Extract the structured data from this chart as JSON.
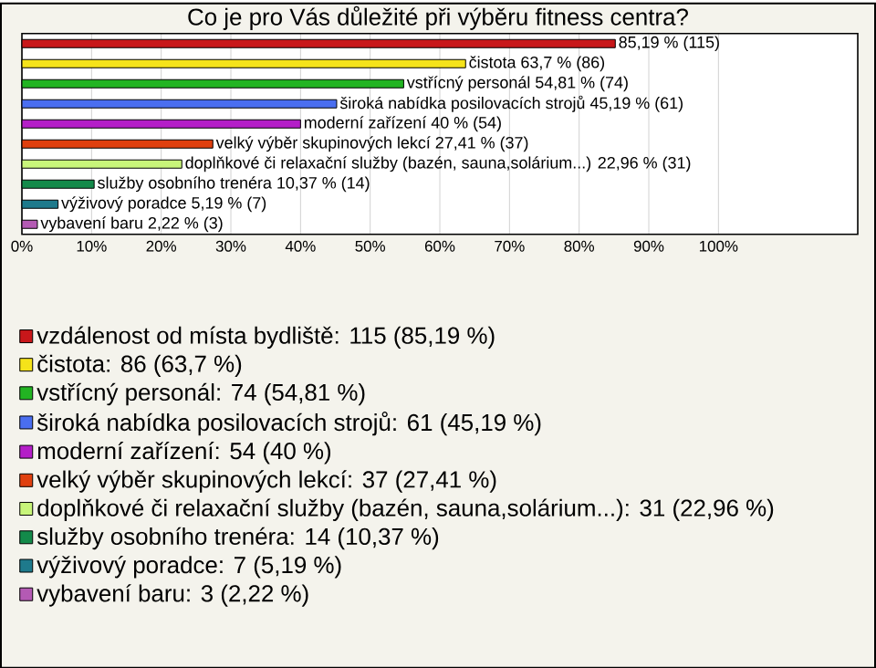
{
  "chart_data": {
    "type": "bar",
    "orientation": "horizontal",
    "title": "Co je pro Vás důležité při výběru fitness centra?",
    "categories": [
      null,
      null,
      null,
      null,
      null,
      null,
      null,
      null,
      null,
      null
    ],
    "series": [
      {
        "name": "vzdálenost od místa bydliště: 115 (85,19 %)",
        "color": "#c8171a",
        "values": [
          85.19,
          null,
          null,
          null,
          null,
          null,
          null,
          null,
          null,
          null
        ],
        "value_labels": [
          "85,19 % (115)",
          null,
          null,
          null,
          null,
          null,
          null,
          null,
          null,
          null
        ]
      },
      {
        "name": "čistota: 86 (63,7 %)",
        "color": "#f5e31a",
        "values": [
          null,
          63.7,
          null,
          null,
          null,
          null,
          null,
          null,
          null,
          null
        ],
        "value_labels": [
          null,
          "čistota 63,7 % (86)",
          null,
          null,
          null,
          null,
          null,
          null,
          null,
          null
        ]
      },
      {
        "name": "vstřícný personál: 74 (54,81 %)",
        "color": "#22b422",
        "values": [
          null,
          null,
          54.81,
          null,
          null,
          null,
          null,
          null,
          null,
          null
        ],
        "value_labels": [
          null,
          null,
          "vstřícný personál 54,81 % (74)",
          null,
          null,
          null,
          null,
          null,
          null,
          null
        ]
      },
      {
        "name": "široká nabídka posilovacích strojů: 61 (45,19 %)",
        "color": "#4a6ef0",
        "values": [
          null,
          null,
          null,
          45.19,
          null,
          null,
          null,
          null,
          null,
          null
        ],
        "value_labels": [
          null,
          null,
          null,
          "široká nabídka posilovacích strojů 45,19 % (61)",
          null,
          null,
          null,
          null,
          null,
          null
        ]
      },
      {
        "name": "moderní zařízení: 54 (40 %)",
        "color": "#b41ec8",
        "values": [
          null,
          null,
          null,
          null,
          40,
          null,
          null,
          null,
          null,
          null
        ],
        "value_labels": [
          null,
          null,
          null,
          null,
          "moderní zařízení 40 % (54)",
          null,
          null,
          null,
          null,
          null
        ]
      },
      {
        "name": "velký výběr skupinových lekcí: 37 (27,41 %)",
        "color": "#e0400f",
        "values": [
          null,
          null,
          null,
          null,
          null,
          27.41,
          null,
          null,
          null,
          null
        ],
        "value_labels": [
          null,
          null,
          null,
          null,
          null,
          "velký výběr skupinových lekcí 27,41 % (37)",
          null,
          null,
          null,
          null
        ]
      },
      {
        "name": "doplňkové či relaxační služby (bazén, sauna,solárium...): 31 (22,96 %)",
        "color": "#c8f57a",
        "values": [
          null,
          null,
          null,
          null,
          null,
          null,
          22.96,
          null,
          null,
          null
        ],
        "value_labels": [
          null,
          null,
          null,
          null,
          null,
          null,
          "doplňkové či relaxační služby (bazén, sauna,solárium...) 22,96 % (31)",
          null,
          null,
          null
        ]
      },
      {
        "name": "služby osobního trenéra: 14 (10,37 %)",
        "color": "#138a4a",
        "values": [
          null,
          null,
          null,
          null,
          null,
          null,
          null,
          10.37,
          null,
          null
        ],
        "value_labels": [
          null,
          null,
          null,
          null,
          null,
          null,
          null,
          "služby osobního trenéra 10,37 % (14)",
          null,
          null
        ]
      },
      {
        "name": "výživový poradce: 7 (5,19 %)",
        "color": "#1e7a8c",
        "values": [
          null,
          null,
          null,
          null,
          null,
          null,
          null,
          null,
          5.19,
          null
        ],
        "value_labels": [
          null,
          null,
          null,
          null,
          null,
          null,
          null,
          null,
          "výživový poradce 5,19 % (7)",
          null
        ]
      },
      {
        "name": "vybavení baru: 3 (2,22 %)",
        "color": "#b45ab4",
        "values": [
          null,
          null,
          null,
          null,
          null,
          null,
          null,
          null,
          null,
          2.22
        ],
        "value_labels": [
          null,
          null,
          null,
          null,
          null,
          null,
          null,
          null,
          null,
          "vybavení baru 2,22 % (3)"
        ]
      }
    ],
    "xlim": [
      0,
      120
    ],
    "xticks": [
      {
        "value": 0,
        "label": "0%"
      },
      {
        "value": 10,
        "label": "10%"
      },
      {
        "value": 20,
        "label": "20%"
      },
      {
        "value": 30,
        "label": "30%"
      },
      {
        "value": 40,
        "label": "40%"
      },
      {
        "value": 50,
        "label": "50%"
      },
      {
        "value": 60,
        "label": "60%"
      },
      {
        "value": 70,
        "label": "70%"
      },
      {
        "value": 80,
        "label": "80%"
      },
      {
        "value": 90,
        "label": "90%"
      },
      {
        "value": 100,
        "label": "100%"
      }
    ],
    "grid": "x",
    "legend": "bottom"
  }
}
